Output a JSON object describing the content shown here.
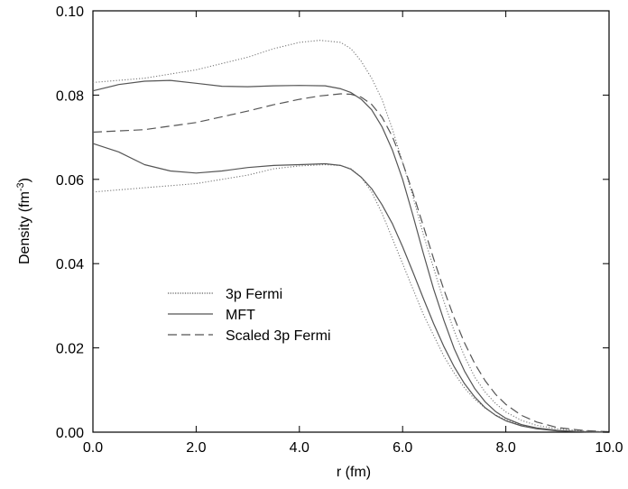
{
  "chart_data": {
    "type": "line",
    "title": "",
    "xlabel": "r (fm)",
    "ylabel_main": "Density (fm",
    "ylabel_sup": "-3",
    "ylabel_close": ")",
    "xlim": [
      0.0,
      10.0
    ],
    "ylim": [
      0.0,
      0.1
    ],
    "x_ticks": [
      0.0,
      2.0,
      4.0,
      6.0,
      8.0,
      10.0
    ],
    "x_tick_labels": [
      "0.0",
      "2.0",
      "4.0",
      "6.0",
      "8.0",
      "10.0"
    ],
    "y_ticks": [
      0.0,
      0.02,
      0.04,
      0.06,
      0.08,
      0.1
    ],
    "y_tick_labels": [
      "0.00",
      "0.02",
      "0.04",
      "0.06",
      "0.08",
      "0.10"
    ],
    "grid": false,
    "legend_position": "center-left",
    "series": [
      {
        "name": "3p Fermi",
        "style": "dotted",
        "curves": [
          {
            "x": [
              0.0,
              1.0,
              2.0,
              3.0,
              3.5,
              4.0,
              4.4,
              4.8,
              5.0,
              5.2,
              5.4,
              5.6,
              5.8,
              6.0,
              6.2,
              6.4,
              6.6,
              6.8,
              7.0,
              7.2,
              7.4,
              7.6,
              7.8,
              8.0,
              8.3,
              8.6,
              9.0,
              9.5,
              10.0
            ],
            "y": [
              0.083,
              0.084,
              0.086,
              0.089,
              0.091,
              0.0925,
              0.093,
              0.0925,
              0.091,
              0.088,
              0.084,
              0.079,
              0.072,
              0.064,
              0.056,
              0.047,
              0.039,
              0.031,
              0.024,
              0.018,
              0.013,
              0.0095,
              0.0068,
              0.0048,
              0.0028,
              0.0016,
              0.0008,
              0.0003,
              0.0001
            ]
          },
          {
            "x": [
              0.0,
              1.0,
              2.0,
              3.0,
              3.5,
              4.0,
              4.5,
              4.8,
              5.0,
              5.2,
              5.4,
              5.6,
              5.8,
              6.0,
              6.2,
              6.4,
              6.6,
              6.8,
              7.0,
              7.2,
              7.4,
              7.6,
              7.8,
              8.0,
              8.3,
              8.6,
              9.0,
              9.5,
              10.0
            ],
            "y": [
              0.057,
              0.058,
              0.059,
              0.061,
              0.0625,
              0.0632,
              0.0635,
              0.0633,
              0.0625,
              0.0605,
              0.057,
              0.052,
              0.046,
              0.04,
              0.034,
              0.028,
              0.023,
              0.018,
              0.014,
              0.0105,
              0.0078,
              0.0057,
              0.0041,
              0.0029,
              0.0017,
              0.001,
              0.0004,
              0.0001,
              0.0
            ]
          }
        ]
      },
      {
        "name": "MFT",
        "style": "solid",
        "curves": [
          {
            "x": [
              0.0,
              0.5,
              1.0,
              1.5,
              2.0,
              2.5,
              3.0,
              3.5,
              4.0,
              4.5,
              4.8,
              5.0,
              5.2,
              5.4,
              5.6,
              5.8,
              6.0,
              6.2,
              6.4,
              6.6,
              6.8,
              7.0,
              7.2,
              7.4,
              7.6,
              7.8,
              8.0,
              8.3,
              8.6,
              9.0,
              9.5,
              10.0
            ],
            "y": [
              0.081,
              0.0825,
              0.0833,
              0.0835,
              0.0828,
              0.0821,
              0.082,
              0.0822,
              0.0823,
              0.0822,
              0.0815,
              0.0806,
              0.079,
              0.0765,
              0.0725,
              0.067,
              0.06,
              0.0515,
              0.0425,
              0.034,
              0.0265,
              0.0198,
              0.0145,
              0.0103,
              0.0072,
              0.0049,
              0.0033,
              0.0018,
              0.001,
              0.0004,
              0.0001,
              0.0
            ]
          },
          {
            "x": [
              0.0,
              0.5,
              1.0,
              1.5,
              2.0,
              2.5,
              3.0,
              3.5,
              4.0,
              4.5,
              4.8,
              5.0,
              5.2,
              5.4,
              5.6,
              5.8,
              6.0,
              6.2,
              6.4,
              6.6,
              6.8,
              7.0,
              7.2,
              7.4,
              7.6,
              7.8,
              8.0,
              8.3,
              8.6,
              9.0,
              9.5,
              10.0
            ],
            "y": [
              0.0685,
              0.0665,
              0.0635,
              0.062,
              0.0615,
              0.062,
              0.0628,
              0.0633,
              0.0635,
              0.0637,
              0.0633,
              0.0624,
              0.0605,
              0.0578,
              0.054,
              0.0495,
              0.044,
              0.038,
              0.0318,
              0.0258,
              0.0203,
              0.0155,
              0.0115,
              0.0083,
              0.0058,
              0.004,
              0.0027,
              0.0015,
              0.0008,
              0.0003,
              0.0001,
              0.0
            ]
          }
        ]
      },
      {
        "name": "Scaled 3p Fermi",
        "style": "dashed",
        "curves": [
          {
            "x": [
              0.0,
              1.0,
              2.0,
              3.0,
              3.5,
              4.0,
              4.4,
              4.8,
              5.0,
              5.2,
              5.4,
              5.6,
              5.8,
              6.0,
              6.2,
              6.4,
              6.6,
              6.8,
              7.0,
              7.2,
              7.4,
              7.6,
              7.8,
              8.0,
              8.3,
              8.6,
              9.0,
              9.5,
              10.0
            ],
            "y": [
              0.0712,
              0.0718,
              0.0735,
              0.0762,
              0.0777,
              0.079,
              0.0798,
              0.0803,
              0.0802,
              0.0795,
              0.0778,
              0.0748,
              0.0702,
              0.064,
              0.0568,
              0.049,
              0.0412,
              0.0338,
              0.0271,
              0.0212,
              0.0162,
              0.0122,
              0.009,
              0.0066,
              0.004,
              0.0024,
              0.0011,
              0.0004,
              0.0001
            ]
          }
        ]
      }
    ]
  }
}
